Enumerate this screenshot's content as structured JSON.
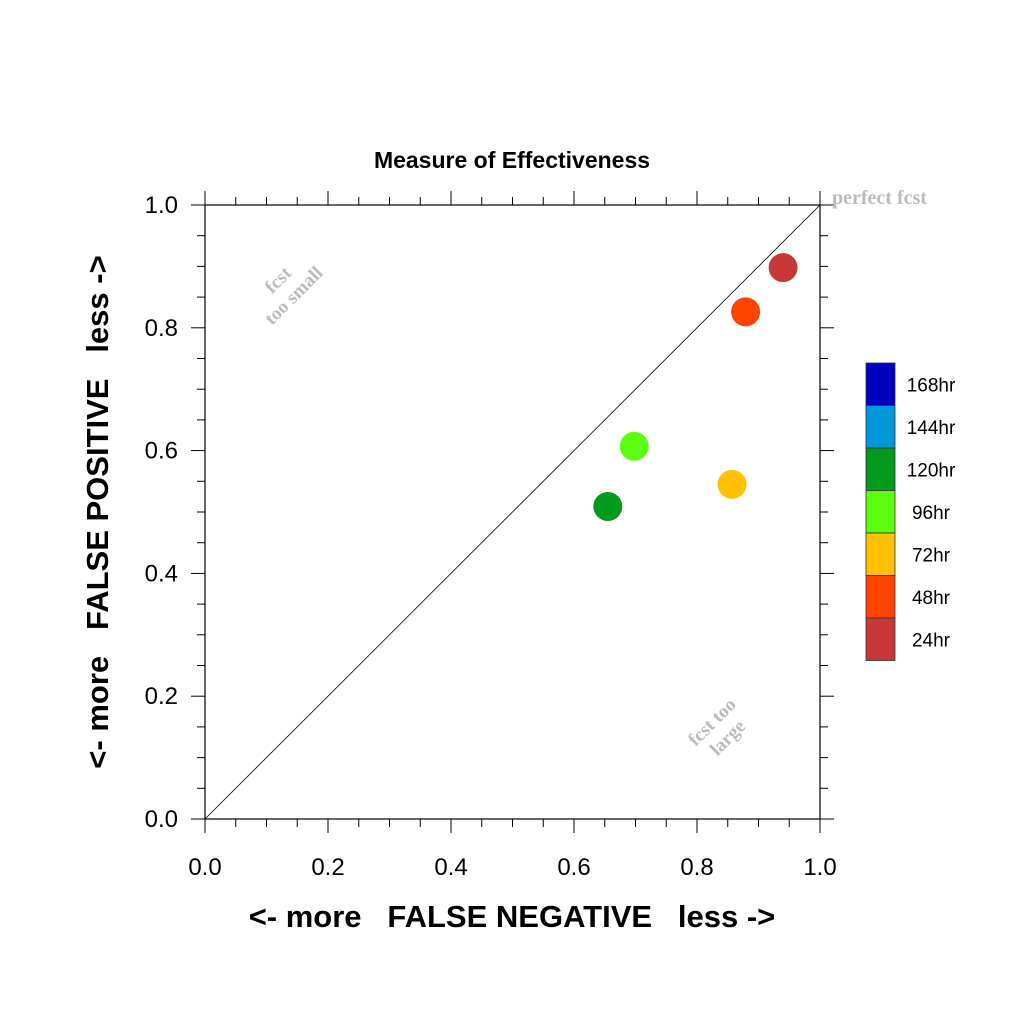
{
  "chart_data": {
    "type": "scatter",
    "title": "Measure of Effectiveness",
    "xlabel": "<- more   FALSE NEGATIVE   less ->",
    "ylabel": "<- more   FALSE POSITIVE   less ->",
    "xlim": [
      0,
      1
    ],
    "ylim": [
      0,
      1
    ],
    "x_ticks": [
      "0.0",
      "0.2",
      "0.4",
      "0.6",
      "0.8",
      "1.0"
    ],
    "y_ticks": [
      "0.0",
      "0.2",
      "0.4",
      "0.6",
      "0.8",
      "1.0"
    ],
    "x_tick_values": [
      0,
      0.2,
      0.4,
      0.6,
      0.8,
      1.0
    ],
    "y_tick_values": [
      0,
      0.2,
      0.4,
      0.6,
      0.8,
      1.0
    ],
    "grid": false,
    "legend_placement": "right",
    "reference_line": {
      "from": [
        0,
        0
      ],
      "to": [
        1,
        1
      ]
    },
    "annotations": {
      "perfect": "perfect fcst",
      "too_small_1": "fcst",
      "too_small_2": "too small",
      "too_large_1": "fcst too",
      "too_large_2": "large"
    },
    "legend": [
      {
        "label": "168hr",
        "color": "#0000c0"
      },
      {
        "label": "144hr",
        "color": "#0098d8"
      },
      {
        "label": "120hr",
        "color": "#009a1c"
      },
      {
        "label": "96hr",
        "color": "#5cff10"
      },
      {
        "label": "72hr",
        "color": "#ffc000"
      },
      {
        "label": "48hr",
        "color": "#ff4400"
      },
      {
        "label": "24hr",
        "color": "#c83838"
      }
    ],
    "points": [
      {
        "series": "24hr",
        "x": 0.94,
        "y": 0.898,
        "color": "#c83838"
      },
      {
        "series": "48hr",
        "x": 0.879,
        "y": 0.826,
        "color": "#ff4400"
      },
      {
        "series": "72hr",
        "x": 0.857,
        "y": 0.545,
        "color": "#ffc000"
      },
      {
        "series": "96hr",
        "x": 0.698,
        "y": 0.607,
        "color": "#5cff10"
      },
      {
        "series": "120hr",
        "x": 0.655,
        "y": 0.509,
        "color": "#009a1c"
      }
    ]
  }
}
